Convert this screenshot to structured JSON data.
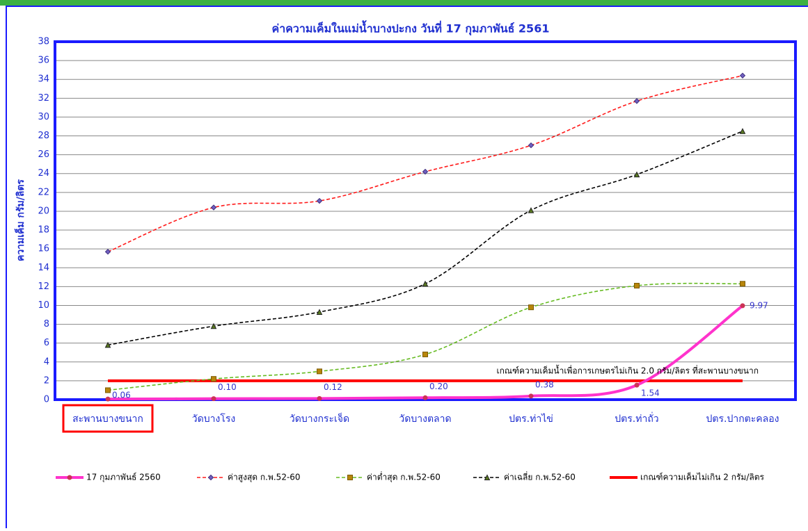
{
  "chart_data": {
    "type": "line",
    "title": "ค่าความเค็มในแม่น้ำบางปะกง วันที่ 17 กุมภาพันธ์ 2561",
    "y_label": "ความเค็ม กรัม/ลิตร",
    "annotation": "เกณฑ์ความเค็มน้ำเพื่อการเกษตรไม่เกิน 2.0 กรัม/ลิตร ที่สะพานบางขนาก",
    "categories": [
      "สะพานบางขนาก",
      "วัดบางโรง",
      "วัดบางกระเจ็ด",
      "วัดบางตลาด",
      "ปตร.ท่าไข่",
      "ปตร.ท่าถั่ว",
      "ปตร.ปากตะคลอง"
    ],
    "series": [
      {
        "name": "17 กุมภาพันธ์ 2560",
        "color": "#ff33cc",
        "dashed": false,
        "marker": "circle",
        "values": [
          0.06,
          0.1,
          0.12,
          0.2,
          0.38,
          1.54,
          9.97
        ],
        "value_labels": [
          "0.06",
          "0.10",
          "0.12",
          "0.20",
          "0.38",
          "1.54",
          "9.97"
        ]
      },
      {
        "name": "ค่าสูงสุด ก.พ.52-60",
        "color": "#ff1a1a",
        "dashed": true,
        "marker": "diamond",
        "values": [
          15.7,
          20.4,
          21.1,
          24.2,
          27.0,
          31.7,
          34.4
        ]
      },
      {
        "name": "ค่าต่ำสุด ก.พ.52-60",
        "color": "#66bb22",
        "dashed": true,
        "marker": "square",
        "values": [
          1.0,
          2.2,
          3.0,
          4.8,
          9.8,
          12.1,
          12.3
        ]
      },
      {
        "name": "ค่าเฉลี่ย ก.พ.52-60",
        "color": "#000000",
        "dashed": true,
        "marker": "triangle",
        "values": [
          5.8,
          7.8,
          9.3,
          12.3,
          20.1,
          23.9,
          28.5
        ]
      },
      {
        "name": "เกณฑ์ความเค็มไม่เกิน 2 กรัม/ลิตร",
        "color": "#ff0000",
        "dashed": false,
        "marker": "none",
        "values": [
          2,
          2,
          2,
          2,
          2,
          2,
          2
        ]
      }
    ],
    "ylim": [
      0,
      38
    ],
    "yticks": [
      0,
      2,
      4,
      6,
      8,
      10,
      12,
      14,
      16,
      18,
      20,
      22,
      24,
      26,
      28,
      30,
      32,
      34,
      36,
      38
    ],
    "grid": true
  }
}
